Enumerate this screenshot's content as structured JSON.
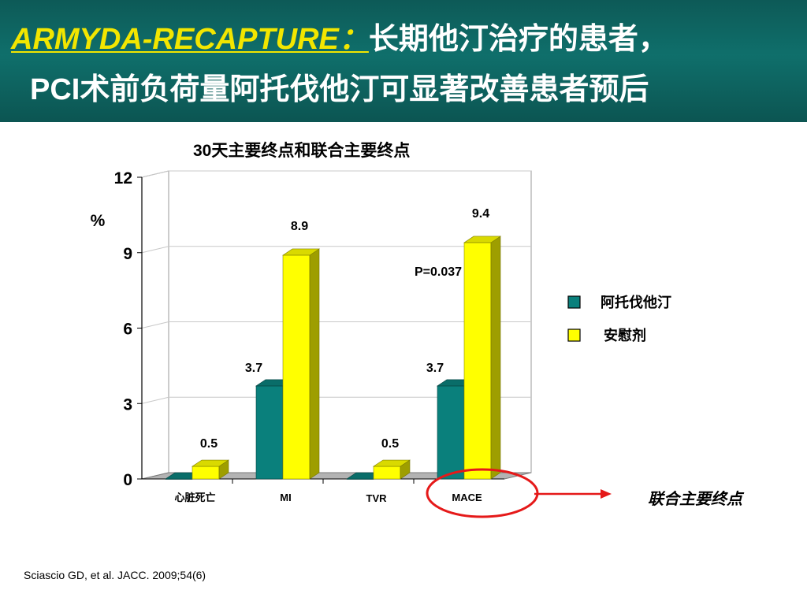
{
  "slide": {
    "title_en": "ARMYDA-RECAPTURE：",
    "title_zh": "长期他汀治疗的患者，",
    "title_line2": "PCI术前负荷量阿托伐他汀可显著改善患者预后",
    "citation": "Sciascio GD, et al. JACC. 2009;54(6)"
  },
  "chart_data": {
    "type": "bar",
    "title": "30天主要终点和联合主要终点",
    "ylabel": "%",
    "xlabel": "",
    "ylim": [
      0,
      12
    ],
    "yticks": [
      0,
      3,
      6,
      9,
      12
    ],
    "categories": [
      "心脏死亡",
      "MI",
      "TVR",
      "MACE"
    ],
    "series": [
      {
        "name": "阿托伐他汀",
        "color": "#0a807c",
        "values": [
          0,
          3.7,
          0,
          3.7
        ],
        "labels": [
          "",
          "3.7",
          "",
          "3.7"
        ]
      },
      {
        "name": "安慰剂",
        "color": "#ffff00",
        "values": [
          0.5,
          8.9,
          0.5,
          9.4
        ],
        "labels": [
          "0.5",
          "8.9",
          "0.5",
          "9.4"
        ]
      }
    ],
    "legend_position": "right",
    "grid": true,
    "annotations": [
      {
        "text": "P=0.037",
        "category": "MACE"
      },
      {
        "text": "联合主要终点",
        "category": "MACE",
        "style": "callout-arrow"
      }
    ]
  }
}
